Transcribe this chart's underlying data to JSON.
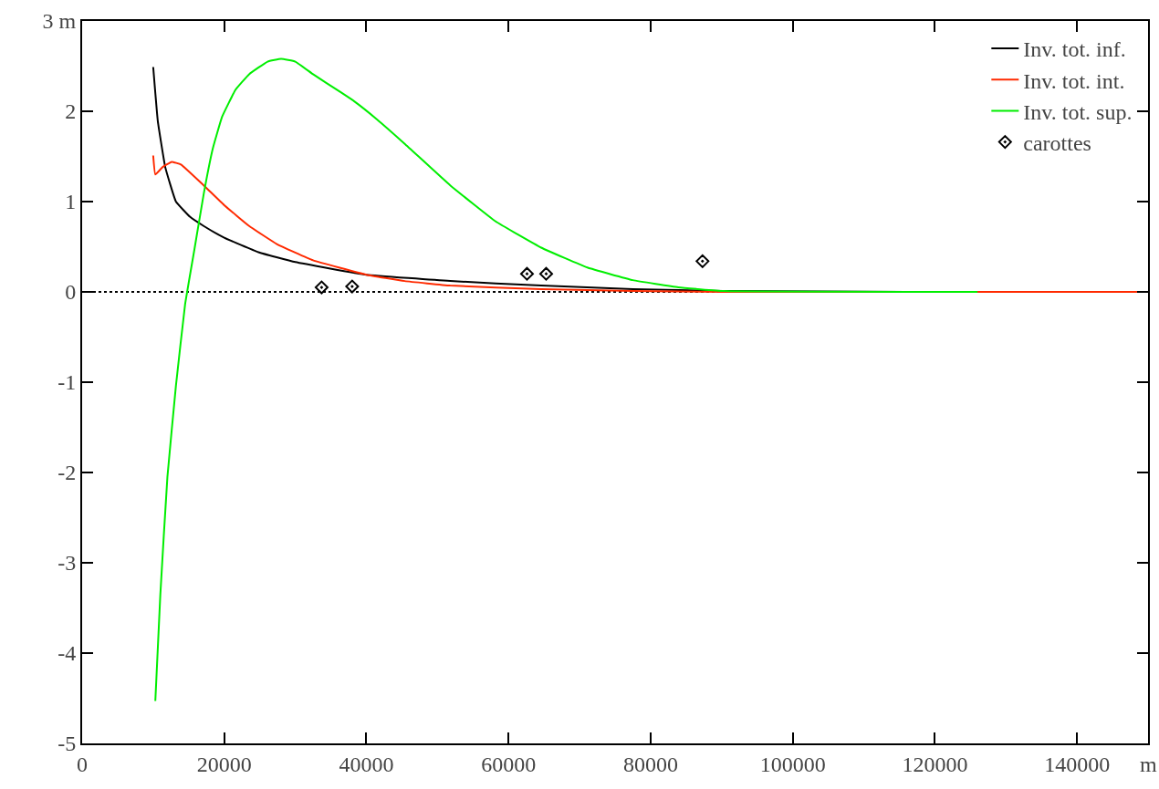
{
  "chart_data": {
    "type": "line",
    "xlim": [
      0,
      150000
    ],
    "ylim": [
      -5,
      3
    ],
    "xticks": [
      0,
      20000,
      40000,
      60000,
      80000,
      100000,
      120000,
      140000,
      {
        "value": 150000,
        "label": "m"
      }
    ],
    "yticks": [
      -5,
      -4,
      -3,
      -2,
      -1,
      0,
      1,
      2,
      {
        "value": 3,
        "label": "3 m"
      }
    ],
    "grid": false,
    "legend": "top right",
    "line_style": "solid",
    "ref_lines": [
      {
        "axis": "y",
        "value": 0,
        "color": "#000000",
        "line_style": "dotted"
      }
    ],
    "series": [
      {
        "name": "Inv. tot. inf.",
        "color": "#000000",
        "x": [
          10000,
          10650,
          11700,
          13200,
          15200,
          17100,
          20000,
          24800,
          30000,
          40000,
          51800,
          64600,
          77500,
          90300,
          116000,
          126000
        ],
        "values": [
          2.49,
          1.89,
          1.38,
          1.0,
          0.83,
          0.73,
          0.6,
          0.44,
          0.33,
          0.19,
          0.12,
          0.07,
          0.03,
          0.01,
          0,
          0
        ]
      },
      {
        "name": "Inv. tot. int.",
        "color": "#ff2a00",
        "x": [
          10000,
          10300,
          11300,
          12600,
          13900,
          17100,
          20000,
          23500,
          27400,
          32500,
          40000,
          45400,
          51800,
          64600,
          77500,
          90000,
          150000
        ],
        "values": [
          1.51,
          1.3,
          1.38,
          1.44,
          1.41,
          1.18,
          0.96,
          0.73,
          0.53,
          0.35,
          0.19,
          0.12,
          0.07,
          0.03,
          0.01,
          0,
          0
        ]
      },
      {
        "name": "Inv. tot. sup.",
        "color": "#00ee00",
        "x": [
          10300,
          11000,
          12000,
          13200,
          14500,
          15800,
          17100,
          18400,
          19700,
          21600,
          23500,
          26100,
          28000,
          30000,
          32500,
          36400,
          38300,
          41500,
          45400,
          51800,
          58200,
          64600,
          71100,
          77500,
          83900,
          90300,
          126000
        ],
        "values": [
          -4.53,
          -3.36,
          -2.05,
          -1.04,
          -0.13,
          0.47,
          1.08,
          1.59,
          1.94,
          2.24,
          2.41,
          2.55,
          2.58,
          2.55,
          2.41,
          2.21,
          2.11,
          1.91,
          1.64,
          1.18,
          0.78,
          0.49,
          0.27,
          0.13,
          0.05,
          0.01,
          0
        ]
      },
      {
        "name": "carottes",
        "type": "scatter",
        "marker": "diamond",
        "color": "#000000",
        "x": [
          33700,
          38000,
          62600,
          65300,
          87300
        ],
        "values": [
          0.05,
          0.06,
          0.2,
          0.2,
          0.34
        ]
      }
    ]
  }
}
